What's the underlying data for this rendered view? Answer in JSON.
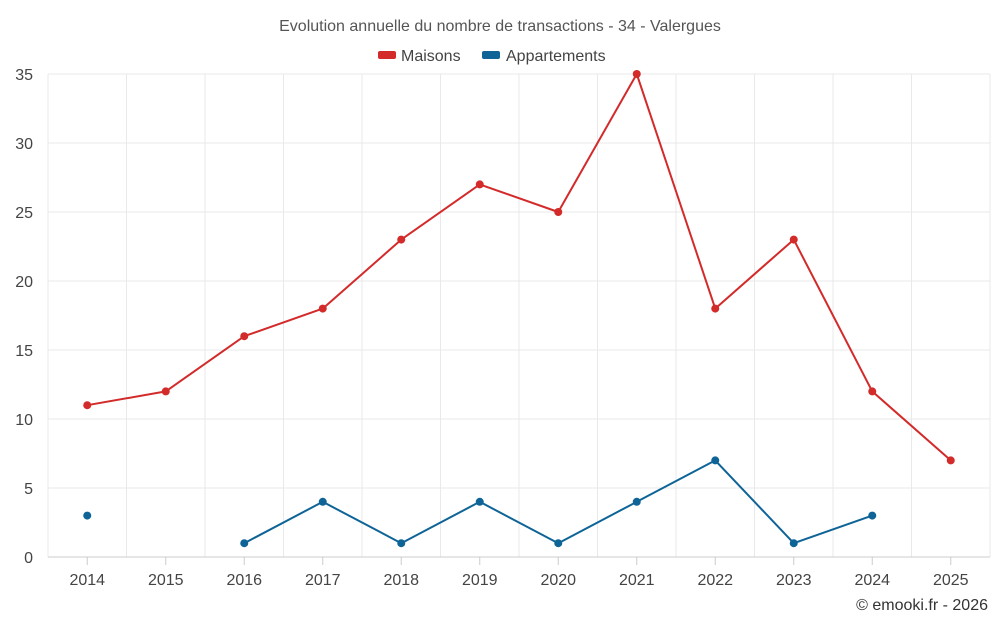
{
  "chart_data": {
    "type": "line",
    "title": "Evolution annuelle du nombre de transactions - 34 - Valergues",
    "categories": [
      "2014",
      "2015",
      "2016",
      "2017",
      "2018",
      "2019",
      "2020",
      "2021",
      "2022",
      "2023",
      "2024",
      "2025"
    ],
    "ylim": [
      0,
      35
    ],
    "yticks": [
      0,
      5,
      10,
      15,
      20,
      25,
      30,
      35
    ],
    "grid": true,
    "legend_position": "top-center",
    "series": [
      {
        "name": "Maisons",
        "color": "#d32a2a",
        "values": [
          11,
          12,
          16,
          18,
          23,
          27,
          25,
          35,
          18,
          23,
          12,
          7
        ]
      },
      {
        "name": "Appartements",
        "color": "#0e6497",
        "values": [
          3,
          null,
          1,
          4,
          1,
          4,
          1,
          4,
          7,
          1,
          3,
          null
        ]
      }
    ]
  },
  "credit": "© emooki.fr - 2026"
}
